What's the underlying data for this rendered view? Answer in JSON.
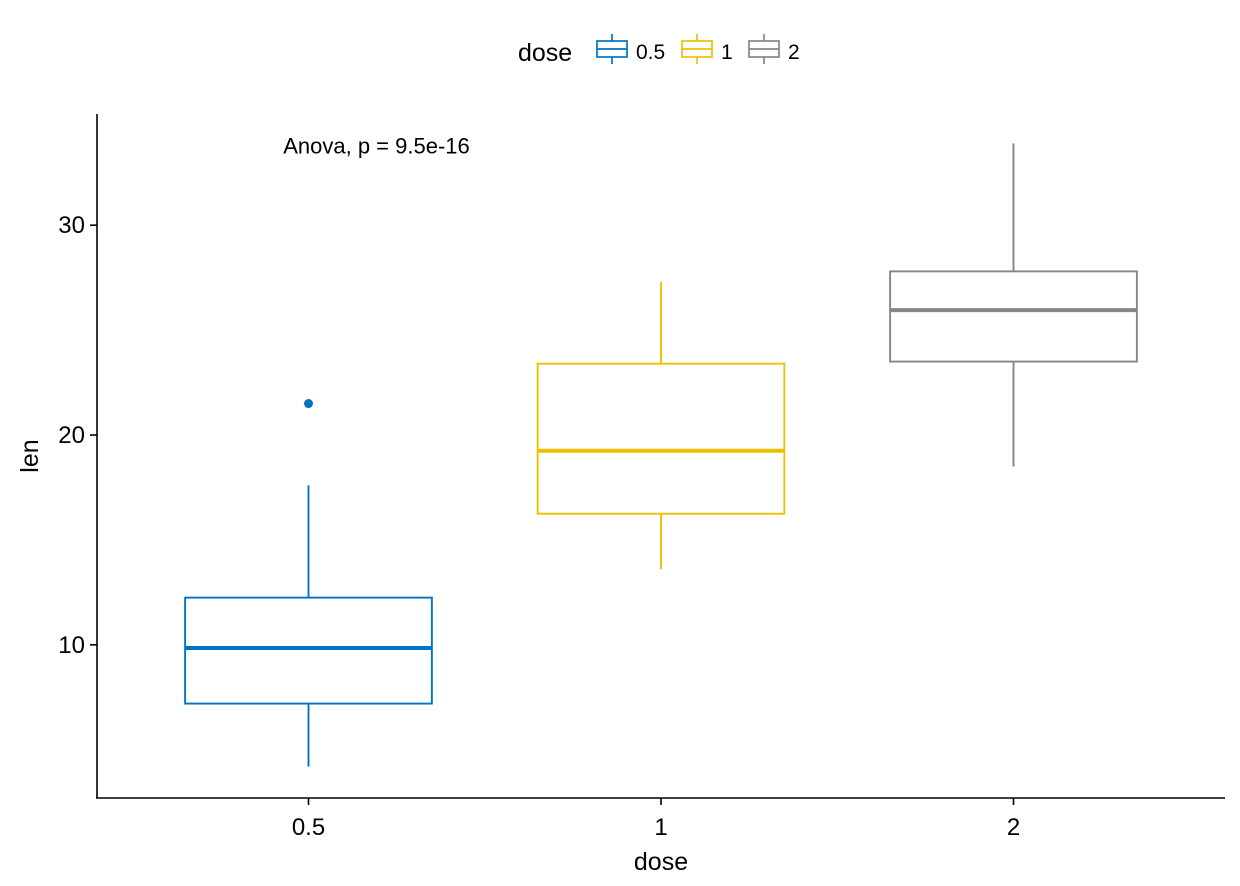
{
  "chart_data": {
    "type": "box",
    "xlabel": "dose",
    "ylabel": "len",
    "categories": [
      "0.5",
      "1",
      "2"
    ],
    "ylim": [
      2.7,
      35.3
    ],
    "yticks": [
      10,
      20,
      30
    ],
    "grid": false,
    "legend": {
      "title": "dose",
      "position": "top",
      "entries": [
        "0.5",
        "1",
        "2"
      ]
    },
    "annotation": {
      "text": "Anova, p = 9.5e-16",
      "x_category": "0.5",
      "y": 33.8
    },
    "series": [
      {
        "category": "0.5",
        "color": "#0073C2",
        "min": 4.2,
        "q1": 7.2,
        "median": 9.85,
        "q3": 12.25,
        "max": 17.6,
        "outliers": [
          21.5
        ]
      },
      {
        "category": "1",
        "color": "#EFC000",
        "min": 13.6,
        "q1": 16.25,
        "median": 19.25,
        "q3": 23.4,
        "max": 27.3,
        "outliers": []
      },
      {
        "category": "2",
        "color": "#868686",
        "min": 18.5,
        "q1": 23.5,
        "median": 25.95,
        "q3": 27.8,
        "max": 33.9,
        "outliers": []
      }
    ]
  }
}
